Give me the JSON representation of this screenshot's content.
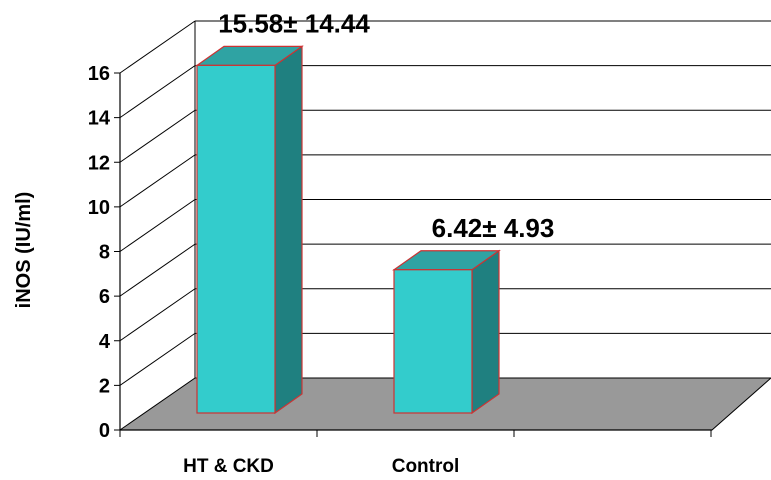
{
  "chart_data": {
    "type": "bar",
    "categories": [
      "HT & CKD",
      "Control"
    ],
    "values": [
      15.58,
      6.42
    ],
    "data_labels": [
      "15.58± 14.44",
      "6.42± 4.93"
    ],
    "ylabel": "iNOS  (IU/ml)",
    "ylim": [
      0,
      16
    ],
    "yticks": [
      "0",
      "2",
      "4",
      "6",
      "8",
      "10",
      "12",
      "14",
      "16"
    ],
    "grid": true,
    "style": "3d",
    "colors": {
      "bar_front": "#33CCCC",
      "bar_side": "#1F8080",
      "bar_top": "#2FA3A3",
      "bar_edge": "#CC3333",
      "floor": "#999999",
      "grid": "#000000"
    }
  }
}
